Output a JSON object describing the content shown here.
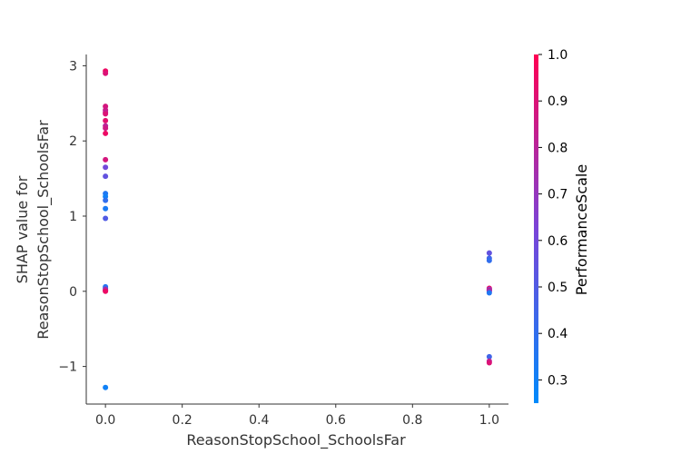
{
  "chart_data": {
    "type": "scatter",
    "title": "",
    "xlabel": "ReasonStopSchool_SchoolsFar",
    "ylabel_lines": [
      "SHAP value for",
      "ReasonStopSchool_SchoolsFar"
    ],
    "xlim": [
      -0.05,
      1.05
    ],
    "ylim": [
      -1.5,
      3.15
    ],
    "x_ticks": [
      0.0,
      0.2,
      0.4,
      0.6,
      0.8,
      1.0
    ],
    "x_tick_labels": [
      "0.0",
      "0.2",
      "0.4",
      "0.6",
      "0.8",
      "1.0"
    ],
    "y_ticks": [
      -1,
      0,
      1,
      2,
      3
    ],
    "y_tick_labels": [
      "−1",
      "0",
      "1",
      "2",
      "3"
    ],
    "grid": false,
    "colorbar": {
      "label": "PerformanceScale",
      "range": [
        0.25,
        1.0
      ],
      "ticks": [
        0.3,
        0.4,
        0.5,
        0.6,
        0.7,
        0.8,
        0.9,
        1.0
      ],
      "tick_labels": [
        "0.3",
        "0.4",
        "0.5",
        "0.6",
        "0.7",
        "0.8",
        "0.9",
        "1.0"
      ],
      "colormap": [
        "#008afb",
        "#7a44d8",
        "#ff0052"
      ]
    },
    "points": [
      {
        "x": 0,
        "y": 2.93,
        "c": 0.95
      },
      {
        "x": 0,
        "y": 2.9,
        "c": 0.9
      },
      {
        "x": 0,
        "y": 2.46,
        "c": 0.88
      },
      {
        "x": 0,
        "y": 2.41,
        "c": 0.85
      },
      {
        "x": 0,
        "y": 2.38,
        "c": 0.82
      },
      {
        "x": 0,
        "y": 2.36,
        "c": 0.9
      },
      {
        "x": 0,
        "y": 2.27,
        "c": 0.92
      },
      {
        "x": 0,
        "y": 2.2,
        "c": 0.8
      },
      {
        "x": 0,
        "y": 2.17,
        "c": 0.86
      },
      {
        "x": 0,
        "y": 2.1,
        "c": 0.95
      },
      {
        "x": 0,
        "y": 1.75,
        "c": 0.88
      },
      {
        "x": 0,
        "y": 1.65,
        "c": 0.6
      },
      {
        "x": 0,
        "y": 1.53,
        "c": 0.55
      },
      {
        "x": 0,
        "y": 1.3,
        "c": 0.35
      },
      {
        "x": 0,
        "y": 1.26,
        "c": 0.3
      },
      {
        "x": 0,
        "y": 1.21,
        "c": 0.4
      },
      {
        "x": 0,
        "y": 1.1,
        "c": 0.33
      },
      {
        "x": 0,
        "y": 0.97,
        "c": 0.5
      },
      {
        "x": 0,
        "y": 0.06,
        "c": 0.35
      },
      {
        "x": 0,
        "y": 0.04,
        "c": 0.45
      },
      {
        "x": 0,
        "y": 0.02,
        "c": 0.9
      },
      {
        "x": 0,
        "y": 0.01,
        "c": 0.7
      },
      {
        "x": 0,
        "y": 0.0,
        "c": 0.95
      },
      {
        "x": 0,
        "y": -1.28,
        "c": 0.3
      },
      {
        "x": 1,
        "y": 0.51,
        "c": 0.55
      },
      {
        "x": 1,
        "y": 0.44,
        "c": 0.45
      },
      {
        "x": 1,
        "y": 0.41,
        "c": 0.4
      },
      {
        "x": 1,
        "y": 0.04,
        "c": 0.95
      },
      {
        "x": 1,
        "y": 0.03,
        "c": 0.85
      },
      {
        "x": 1,
        "y": 0.02,
        "c": 0.6
      },
      {
        "x": 1,
        "y": 0.01,
        "c": 0.9
      },
      {
        "x": 1,
        "y": 0.0,
        "c": 0.75
      },
      {
        "x": 1,
        "y": -0.02,
        "c": 0.35
      },
      {
        "x": 1,
        "y": -0.87,
        "c": 0.45
      },
      {
        "x": 1,
        "y": -0.93,
        "c": 0.8
      },
      {
        "x": 1,
        "y": -0.95,
        "c": 0.9
      }
    ]
  }
}
